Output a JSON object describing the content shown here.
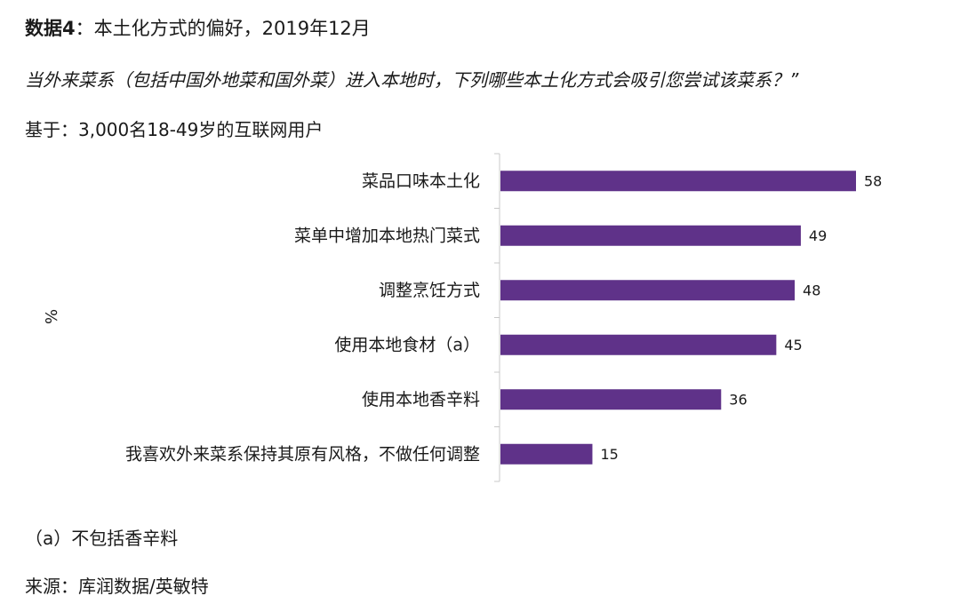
{
  "header": {
    "title_prefix": "数据4",
    "title_rest": "：本土化方式的偏好，2019年12月",
    "question": "当外来菜系（包括中国外地菜和国外菜）进入本地时，下列哪些本土化方式会吸引您尝试该菜系？”",
    "base": "基于：3,000名18-49岁的互联网用户"
  },
  "footer": {
    "note": "（a）不包括香辛料",
    "source": "来源：库润数据/英敏特"
  },
  "chart_data": {
    "type": "bar",
    "orientation": "horizontal",
    "ylabel": "%",
    "categories": [
      "菜品口味本土化",
      "菜单中增加本地热门菜式",
      "调整烹饪方式",
      "使用本地食材（a）",
      "使用本地香辛料",
      "我喜欢外来菜系保持其原有风格，不做任何调整"
    ],
    "values": [
      58,
      49,
      48,
      45,
      36,
      15
    ],
    "xlim": [
      0,
      70
    ],
    "bar_color": "#5f3289",
    "axis_color": "#c8c8c8",
    "grid": false,
    "legend": false
  }
}
